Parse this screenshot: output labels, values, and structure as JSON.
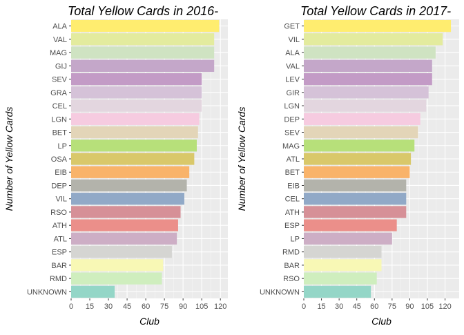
{
  "chart_data": [
    {
      "type": "bar",
      "orientation": "horizontal",
      "title": "Total Yellow Cards in 2016-",
      "xlabel": "Club",
      "ylabel": "Number of Yellow Cards",
      "xlim": [
        0,
        126
      ],
      "xticks": [
        0,
        15,
        30,
        45,
        60,
        75,
        90,
        105,
        120
      ],
      "grid": true,
      "categories": [
        "ALA",
        "VAL",
        "MAG",
        "GIJ",
        "SEV",
        "GRA",
        "CEL",
        "LGN",
        "BET",
        "LP",
        "OSA",
        "EIB",
        "DEP",
        "VIL",
        "RSO",
        "ATH",
        "ATL",
        "ESP",
        "BAR",
        "RMD",
        "UNKNOWN"
      ],
      "values": [
        119,
        115,
        115,
        115,
        105,
        105,
        105,
        103,
        102,
        101,
        99,
        95,
        93,
        91,
        88,
        86,
        85,
        81,
        74,
        73,
        35
      ],
      "colors": [
        "#ffed6f",
        "#e3eb9e",
        "#cfe3c2",
        "#c4a7c9",
        "#c39bc6",
        "#d5c2d8",
        "#e3d6df",
        "#f6cbe0",
        "#e3d5b8",
        "#b7e07a",
        "#d9c86a",
        "#f9b36a",
        "#b3b3ab",
        "#91a9c7",
        "#d69097",
        "#eb8f8a",
        "#cdaec5",
        "#d5d5d2",
        "#f8f8b5",
        "#cfeebe",
        "#94d6c7"
      ]
    },
    {
      "type": "bar",
      "orientation": "horizontal",
      "title": "Total Yellow Cards in 2017-",
      "xlabel": "Club",
      "ylabel": "Number of Yellow Cards",
      "xlim": [
        0,
        132
      ],
      "xticks": [
        0,
        15,
        30,
        45,
        60,
        75,
        90,
        105,
        120
      ],
      "grid": true,
      "categories": [
        "GET",
        "VIL",
        "ALA",
        "VAL",
        "LEV",
        "GIR",
        "LGN",
        "DEP",
        "SEV",
        "MAG",
        "ATL",
        "BET",
        "EIB",
        "CEL",
        "ATH",
        "ESP",
        "LP",
        "RMD",
        "BAR",
        "RSO",
        "UNKNOWN"
      ],
      "values": [
        125,
        118,
        112,
        109,
        109,
        106,
        104,
        99,
        97,
        94,
        91,
        90,
        87,
        87,
        87,
        79,
        75,
        66,
        66,
        62,
        57
      ],
      "colors": [
        "#ffed6f",
        "#e3eb9e",
        "#cfe3c2",
        "#c4a7c9",
        "#c39bc6",
        "#d5c2d8",
        "#e3d6df",
        "#f6cbe0",
        "#e3d5b8",
        "#b7e07a",
        "#d9c86a",
        "#f9b36a",
        "#b3b3ab",
        "#91a9c7",
        "#d69097",
        "#eb8f8a",
        "#cdaec5",
        "#d5d5d2",
        "#f8f8b5",
        "#cfeebe",
        "#94d6c7"
      ]
    }
  ]
}
